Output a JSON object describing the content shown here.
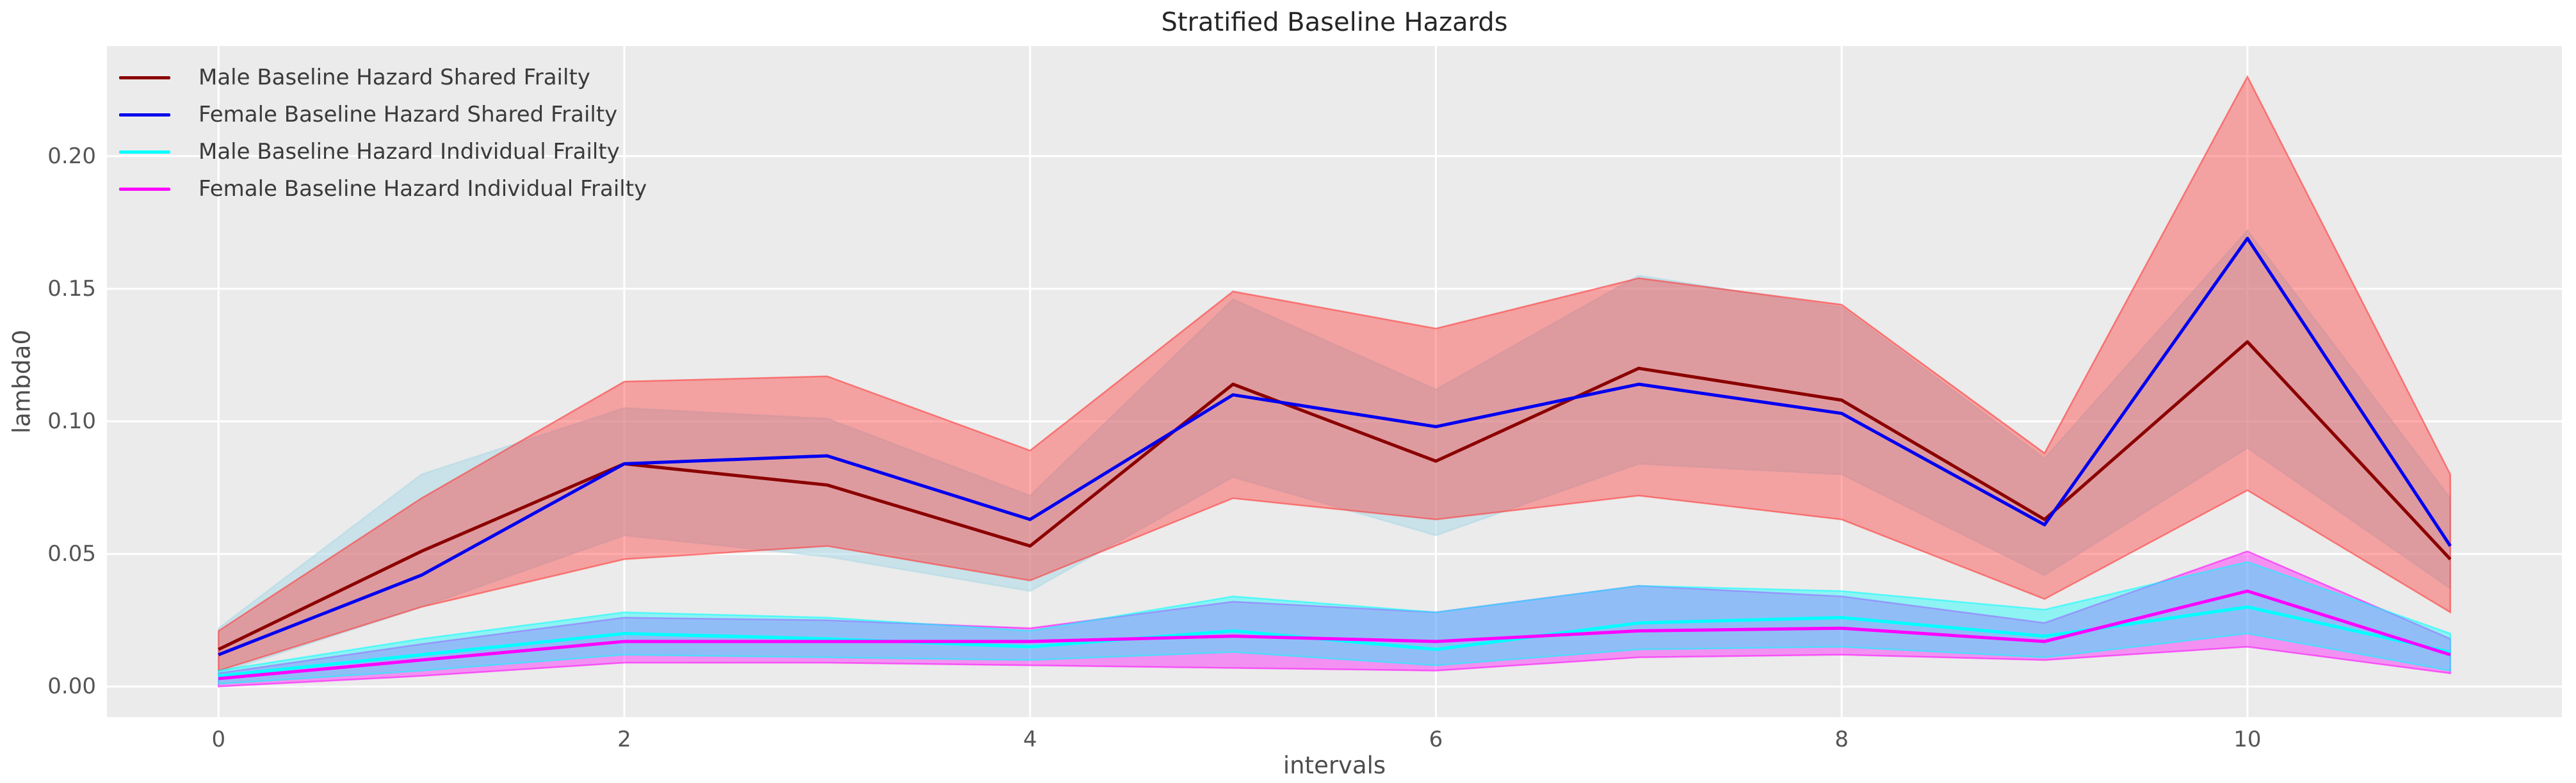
{
  "title": "Stratified Baseline Hazards",
  "xlabel": "intervals",
  "ylabel": "lambda0",
  "legend": {
    "position": "upper left",
    "items": [
      {
        "label": "Male Baseline Hazard Shared Frailty",
        "color": "#8B0000"
      },
      {
        "label": "Female Baseline Hazard Shared Frailty",
        "color": "#0000F0"
      },
      {
        "label": "Male Baseline Hazard Individual Frailty",
        "color": "#00FFFF"
      },
      {
        "label": "Female Baseline Hazard Individual Frailty",
        "color": "#FF00FF"
      }
    ]
  },
  "axes": {
    "background": "#EBEBEB",
    "grid_color": "#FFFFFF",
    "x_tick_labels": [
      "0",
      "2",
      "4",
      "6",
      "8",
      "10"
    ],
    "x_tick_values": [
      0,
      2,
      4,
      6,
      8,
      10
    ],
    "y_tick_labels": [
      "0.00",
      "0.05",
      "0.10",
      "0.15",
      "0.20"
    ],
    "y_tick_values": [
      0.0,
      0.05,
      0.1,
      0.15,
      0.2
    ]
  },
  "chart_data": {
    "type": "line",
    "title": "Stratified Baseline Hazards",
    "xlabel": "intervals",
    "ylabel": "lambda0",
    "grid": true,
    "legend_position": "upper left",
    "x": [
      0,
      1,
      2,
      3,
      4,
      5,
      6,
      7,
      8,
      9,
      10,
      11
    ],
    "xlim": [
      -0.55,
      11.55
    ],
    "ylim": [
      -0.0115,
      0.2415
    ],
    "band_draw_order": [
      1,
      0,
      3,
      2
    ],
    "line_draw_order": [
      0,
      1,
      2,
      3
    ],
    "series": [
      {
        "name": "Male Baseline Hazard Shared Frailty",
        "color": "#8B0000",
        "band_fill": "#FF3232",
        "band_opacity": 0.4,
        "values": [
          0.014,
          0.051,
          0.084,
          0.076,
          0.053,
          0.114,
          0.085,
          0.12,
          0.108,
          0.063,
          0.13,
          0.048
        ],
        "band_upper": [
          0.021,
          0.071,
          0.115,
          0.117,
          0.089,
          0.149,
          0.135,
          0.154,
          0.144,
          0.088,
          0.23,
          0.08
        ],
        "band_lower": [
          0.006,
          0.03,
          0.048,
          0.053,
          0.04,
          0.071,
          0.063,
          0.072,
          0.063,
          0.033,
          0.074,
          0.028
        ]
      },
      {
        "name": "Female Baseline Hazard Shared Frailty",
        "color": "#0000F0",
        "band_fill": "#ADD8E6",
        "band_opacity": 0.55,
        "values": [
          0.012,
          0.042,
          0.084,
          0.087,
          0.063,
          0.11,
          0.098,
          0.114,
          0.103,
          0.061,
          0.169,
          0.053
        ],
        "band_upper": [
          0.022,
          0.08,
          0.105,
          0.101,
          0.072,
          0.146,
          0.112,
          0.155,
          0.143,
          0.086,
          0.172,
          0.071
        ],
        "band_lower": [
          0.005,
          0.03,
          0.057,
          0.049,
          0.036,
          0.079,
          0.057,
          0.084,
          0.08,
          0.042,
          0.09,
          0.037
        ]
      },
      {
        "name": "Male Baseline Hazard Individual Frailty",
        "color": "#00FFFF",
        "band_fill": "#00FFFF",
        "band_opacity": 0.4,
        "values": [
          0.004,
          0.012,
          0.02,
          0.018,
          0.015,
          0.021,
          0.014,
          0.024,
          0.026,
          0.019,
          0.03,
          0.013
        ],
        "band_upper": [
          0.006,
          0.018,
          0.028,
          0.026,
          0.021,
          0.034,
          0.028,
          0.038,
          0.036,
          0.029,
          0.047,
          0.02
        ],
        "band_lower": [
          0.001,
          0.006,
          0.012,
          0.011,
          0.01,
          0.013,
          0.008,
          0.014,
          0.015,
          0.011,
          0.02,
          0.006
        ]
      },
      {
        "name": "Female Baseline Hazard Individual Frailty",
        "color": "#FF00FF",
        "band_fill": "#FF00FF",
        "band_opacity": 0.38,
        "values": [
          0.003,
          0.01,
          0.017,
          0.017,
          0.017,
          0.019,
          0.017,
          0.021,
          0.022,
          0.017,
          0.036,
          0.012
        ],
        "band_upper": [
          0.005,
          0.016,
          0.026,
          0.025,
          0.022,
          0.032,
          0.028,
          0.038,
          0.034,
          0.024,
          0.051,
          0.018
        ],
        "band_lower": [
          0.0,
          0.004,
          0.009,
          0.009,
          0.008,
          0.007,
          0.006,
          0.011,
          0.012,
          0.01,
          0.015,
          0.005
        ]
      }
    ]
  }
}
